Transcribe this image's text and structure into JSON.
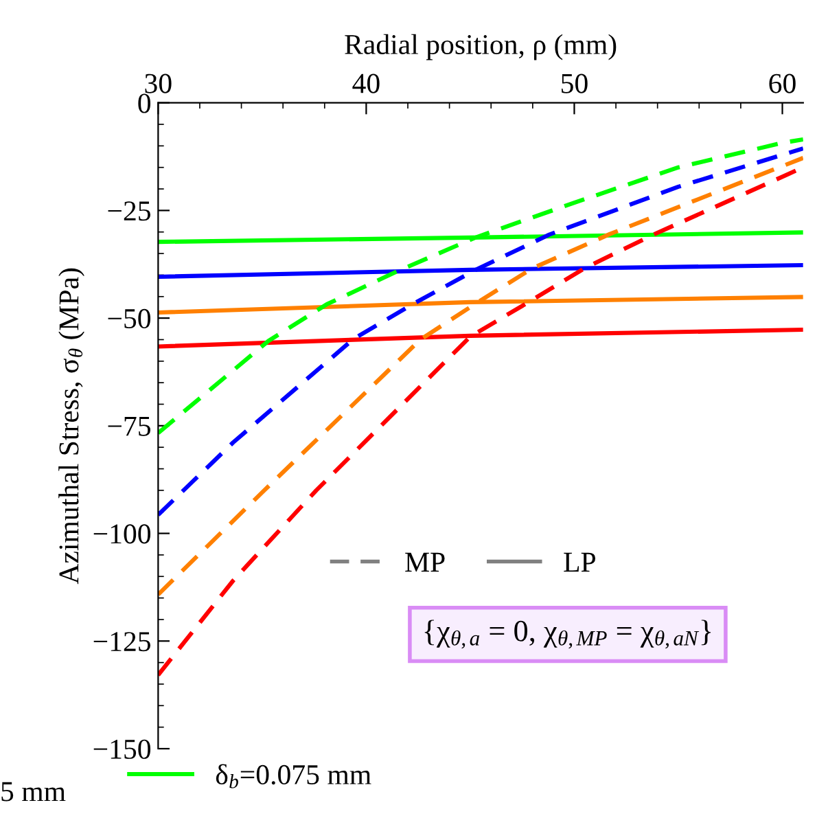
{
  "chart_data": {
    "type": "line",
    "xlabel": "Radial position, ρ (mm)",
    "ylabel": "Azimuthal Stress, σ$_{θ}$ (MPa)",
    "xlim": [
      30,
      61
    ],
    "xticks": [
      30,
      40,
      50,
      60
    ],
    "ylim": [
      -150,
      0
    ],
    "yticks": [
      {
        "value": -150,
        "label": "−150"
      },
      {
        "value": -125,
        "label": "−125"
      },
      {
        "value": -100,
        "label": "−100"
      },
      {
        "value": -75,
        "label": "−75"
      },
      {
        "value": -50,
        "label": "−50"
      },
      {
        "value": -25,
        "label": "−25"
      },
      0
    ],
    "grid": false,
    "legend": "bottom",
    "line_style": "solid",
    "marker": "none",
    "series": [
      {
        "color": "#ff0000",
        "x": [
          30,
          45,
          61
        ],
        "values": [
          -56.6,
          -54.1,
          -52.7
        ]
      },
      {
        "color": "#ff8000",
        "x": [
          30,
          45,
          61
        ],
        "values": [
          -48.7,
          -46.3,
          -45.1
        ]
      },
      {
        "color": "#0000ff",
        "x": [
          30,
          45,
          61
        ],
        "values": [
          -40.4,
          -38.8,
          -37.7
        ]
      },
      {
        "name": "δ$_{b}$=0.075 mm",
        "color": "#00ff00",
        "x": [
          30,
          45,
          61
        ],
        "values": [
          -32.3,
          -31.3,
          -30.1
        ]
      },
      {
        "color": "#ff0000",
        "line_style": "dashed",
        "x": [
          30,
          33.6,
          37.6,
          45.0,
          47.8,
          50.5,
          53.9,
          61
        ],
        "values": [
          -132.9,
          -111,
          -90,
          -54.3,
          -46.3,
          -38.4,
          -30.4,
          -15.0
        ]
      },
      {
        "color": "#ff8000",
        "line_style": "dashed",
        "x": [
          30,
          35.1,
          42.6,
          45.3,
          48.0,
          51.7,
          61
        ],
        "values": [
          -114.2,
          -90,
          -55,
          -46.5,
          -38.4,
          -30.5,
          -12.8
        ]
      },
      {
        "color": "#0000ff",
        "line_style": "dashed",
        "x": [
          30,
          33.6,
          39.4,
          42.3,
          45.3,
          48.8,
          55,
          61
        ],
        "values": [
          -95.7,
          -78.9,
          -54.8,
          -46.6,
          -38.7,
          -30.6,
          -19.5,
          -10.6
        ]
      },
      {
        "color": "#00ff00",
        "line_style": "dashed",
        "x": [
          30,
          35.3,
          38.1,
          41.6,
          45.3,
          50,
          55,
          60,
          61
        ],
        "values": [
          -76.7,
          -55.3,
          -46.8,
          -38.9,
          -31.2,
          -23.2,
          -15,
          -9.3,
          -8.5
        ]
      }
    ],
    "annotations": [
      "5 mm",
      "MP",
      "LP",
      "{χ$_{θ,a}$ = 0, χ$_{θ,MP}$ = χ$_{θ,aN}$}"
    ]
  }
}
